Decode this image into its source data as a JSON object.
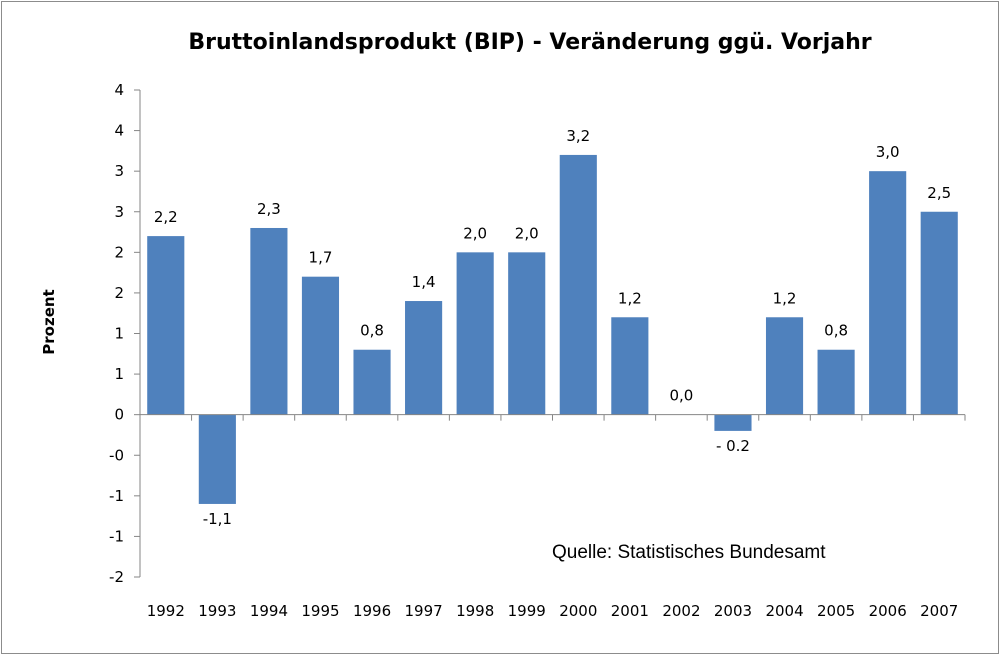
{
  "chart_data": {
    "type": "bar",
    "title": "Bruttoinlandsprodukt (BIP)  - Veränderung ggü. Vorjahr",
    "xlabel": "",
    "ylabel": "Prozent",
    "categories": [
      "1992",
      "1993",
      "1994",
      "1995",
      "1996",
      "1997",
      "1998",
      "1999",
      "2000",
      "2001",
      "2002",
      "2003",
      "2004",
      "2005",
      "2006",
      "2007"
    ],
    "values": [
      2.2,
      -1.1,
      2.3,
      1.7,
      0.8,
      1.4,
      2.0,
      2.0,
      3.2,
      1.2,
      0.0,
      -0.2,
      1.2,
      0.8,
      3.0,
      2.5
    ],
    "data_labels": [
      "2,2",
      "-1,1",
      "2,3",
      "1,7",
      "0,8",
      "1,4",
      "2,0",
      "2,0",
      "3,2",
      "1,2",
      "0,0",
      "- 0.2",
      "1,2",
      "0,8",
      "3,0",
      "2,5"
    ],
    "ylim": [
      -2,
      4
    ],
    "yticks": [
      -2,
      -1.5,
      -1,
      -0.5,
      0,
      0.5,
      1,
      1.5,
      2,
      2.5,
      3,
      3.5,
      4
    ],
    "ytick_labels": [
      "-2",
      "-1",
      "-1",
      "-0",
      "0",
      "1",
      "1",
      "2",
      "2",
      "3",
      "3",
      "4",
      "4"
    ],
    "bar_color": "#4f81bd",
    "grid": false,
    "legend": "none",
    "annotation": "Quelle: Statistisches Bundesamt"
  }
}
